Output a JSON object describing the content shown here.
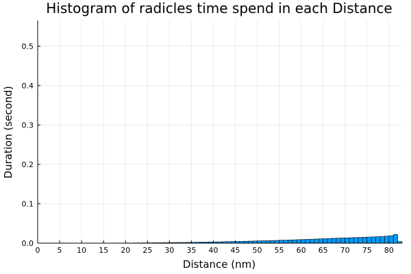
{
  "chart_data": {
    "type": "bar",
    "title": "Histogram of radicles time spend in each Distance",
    "xlabel": "Distance (nm)",
    "ylabel": "Duration (second)",
    "xlim": [
      0,
      83
    ],
    "ylim": [
      0,
      0.565
    ],
    "xticks": [
      0,
      5,
      10,
      15,
      20,
      25,
      30,
      35,
      40,
      45,
      50,
      55,
      60,
      65,
      70,
      75,
      80
    ],
    "yticks": [
      0.0,
      0.1,
      0.2,
      0.3,
      0.4,
      0.5
    ],
    "ytick_labels": [
      "0.0",
      "0.1",
      "0.2",
      "0.3",
      "0.4",
      "0.5"
    ],
    "grid": true,
    "legend": "none",
    "bar_color": "#009af9",
    "bin_width": 1,
    "bins": [
      0,
      1,
      2,
      3,
      4,
      5,
      6,
      7,
      8,
      9,
      10,
      11,
      12,
      13,
      14,
      15,
      16,
      17,
      18,
      19,
      20,
      21,
      22,
      23,
      24,
      25,
      26,
      27,
      28,
      29,
      30,
      31,
      32,
      33,
      34,
      35,
      36,
      37,
      38,
      39,
      40,
      41,
      42,
      43,
      44,
      45,
      46,
      47,
      48,
      49,
      50,
      51,
      52,
      53,
      54,
      55,
      56,
      57,
      58,
      59,
      60,
      61,
      62,
      63,
      64,
      65,
      66,
      67,
      68,
      69,
      70,
      71,
      72,
      73,
      74,
      75,
      76,
      77,
      78,
      79,
      80,
      81,
      82
    ],
    "values": [
      0.0,
      0.0,
      0.0,
      0.0,
      0.0,
      0.0,
      0.0,
      0.0,
      0.0001,
      0.0001,
      0.0001,
      0.0001,
      0.0001,
      0.0002,
      0.0002,
      0.0002,
      0.0003,
      0.0003,
      0.0004,
      0.0004,
      0.0005,
      0.0005,
      0.0006,
      0.0007,
      0.0008,
      0.0009,
      0.001,
      0.0011,
      0.0012,
      0.0013,
      0.0014,
      0.0016,
      0.0017,
      0.0018,
      0.002,
      0.0022,
      0.0024,
      0.0026,
      0.0028,
      0.003,
      0.0032,
      0.0034,
      0.0036,
      0.0039,
      0.0041,
      0.0044,
      0.0047,
      0.0049,
      0.0052,
      0.0055,
      0.0058,
      0.0061,
      0.0064,
      0.0067,
      0.007,
      0.0074,
      0.0077,
      0.0081,
      0.0085,
      0.0089,
      0.0093,
      0.0097,
      0.0101,
      0.0105,
      0.011,
      0.0114,
      0.0118,
      0.0123,
      0.0127,
      0.0131,
      0.0135,
      0.0139,
      0.0143,
      0.0147,
      0.0151,
      0.0155,
      0.0159,
      0.0164,
      0.017,
      0.0178,
      0.019,
      0.022,
      0.004
    ]
  }
}
